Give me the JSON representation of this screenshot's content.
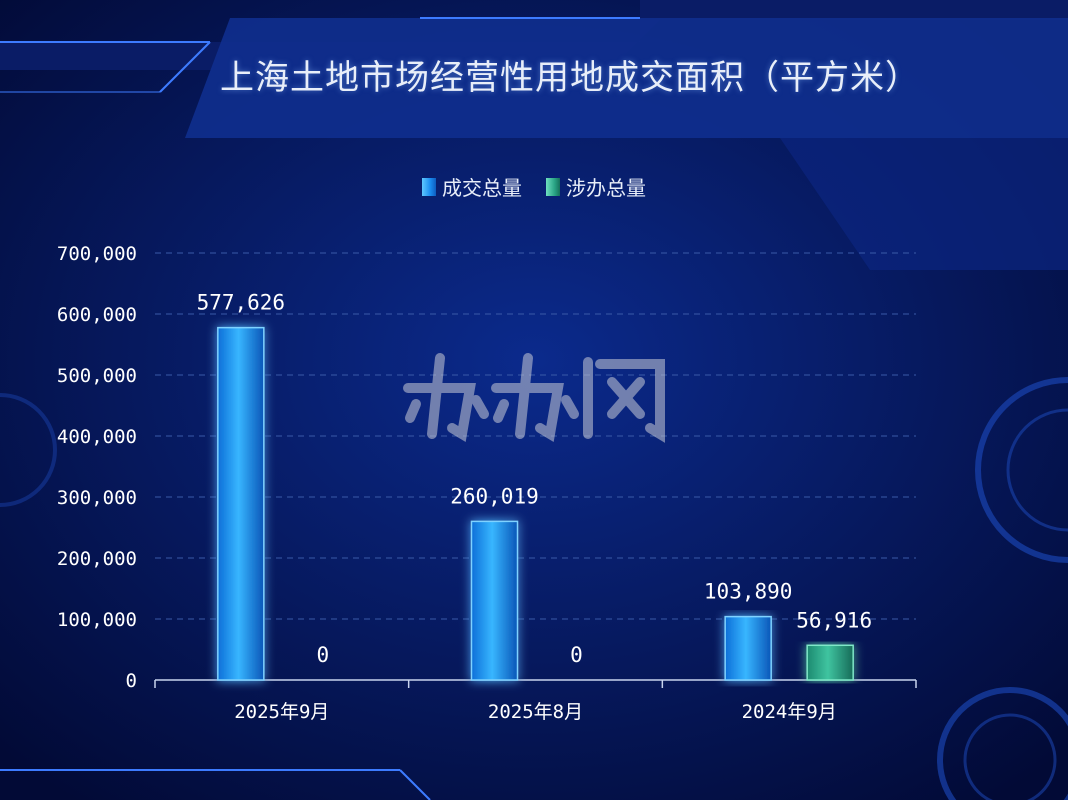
{
  "page": {
    "title": "上海土地市场经营性用地成交面积（平方米）"
  },
  "colors": {
    "total": "#1a8cf0",
    "involved": "#2aa586",
    "background": "#020a36"
  },
  "watermark": {
    "text": "办办网",
    "style": "logo"
  },
  "chart_data": {
    "type": "bar",
    "title": "上海土地市场经营性用地成交面积（平方米）",
    "categories": [
      "2025年9月",
      "2025年8月",
      "2024年9月"
    ],
    "series": [
      {
        "name": "成交总量",
        "values": [
          577626,
          260019,
          103890
        ],
        "labels": [
          "577,626",
          "260,019",
          "103,890"
        ]
      },
      {
        "name": "涉办总量",
        "values": [
          0,
          0,
          56916
        ],
        "labels": [
          "0",
          "0",
          "56,916"
        ]
      }
    ],
    "ylim": [
      0,
      700000
    ],
    "yticks": [
      0,
      100000,
      200000,
      300000,
      400000,
      500000,
      600000,
      700000
    ],
    "ytick_labels": [
      "0",
      "100,000",
      "200,000",
      "300,000",
      "400,000",
      "500,000",
      "600,000",
      "700,000"
    ],
    "grid": true,
    "legend": "top-center"
  }
}
